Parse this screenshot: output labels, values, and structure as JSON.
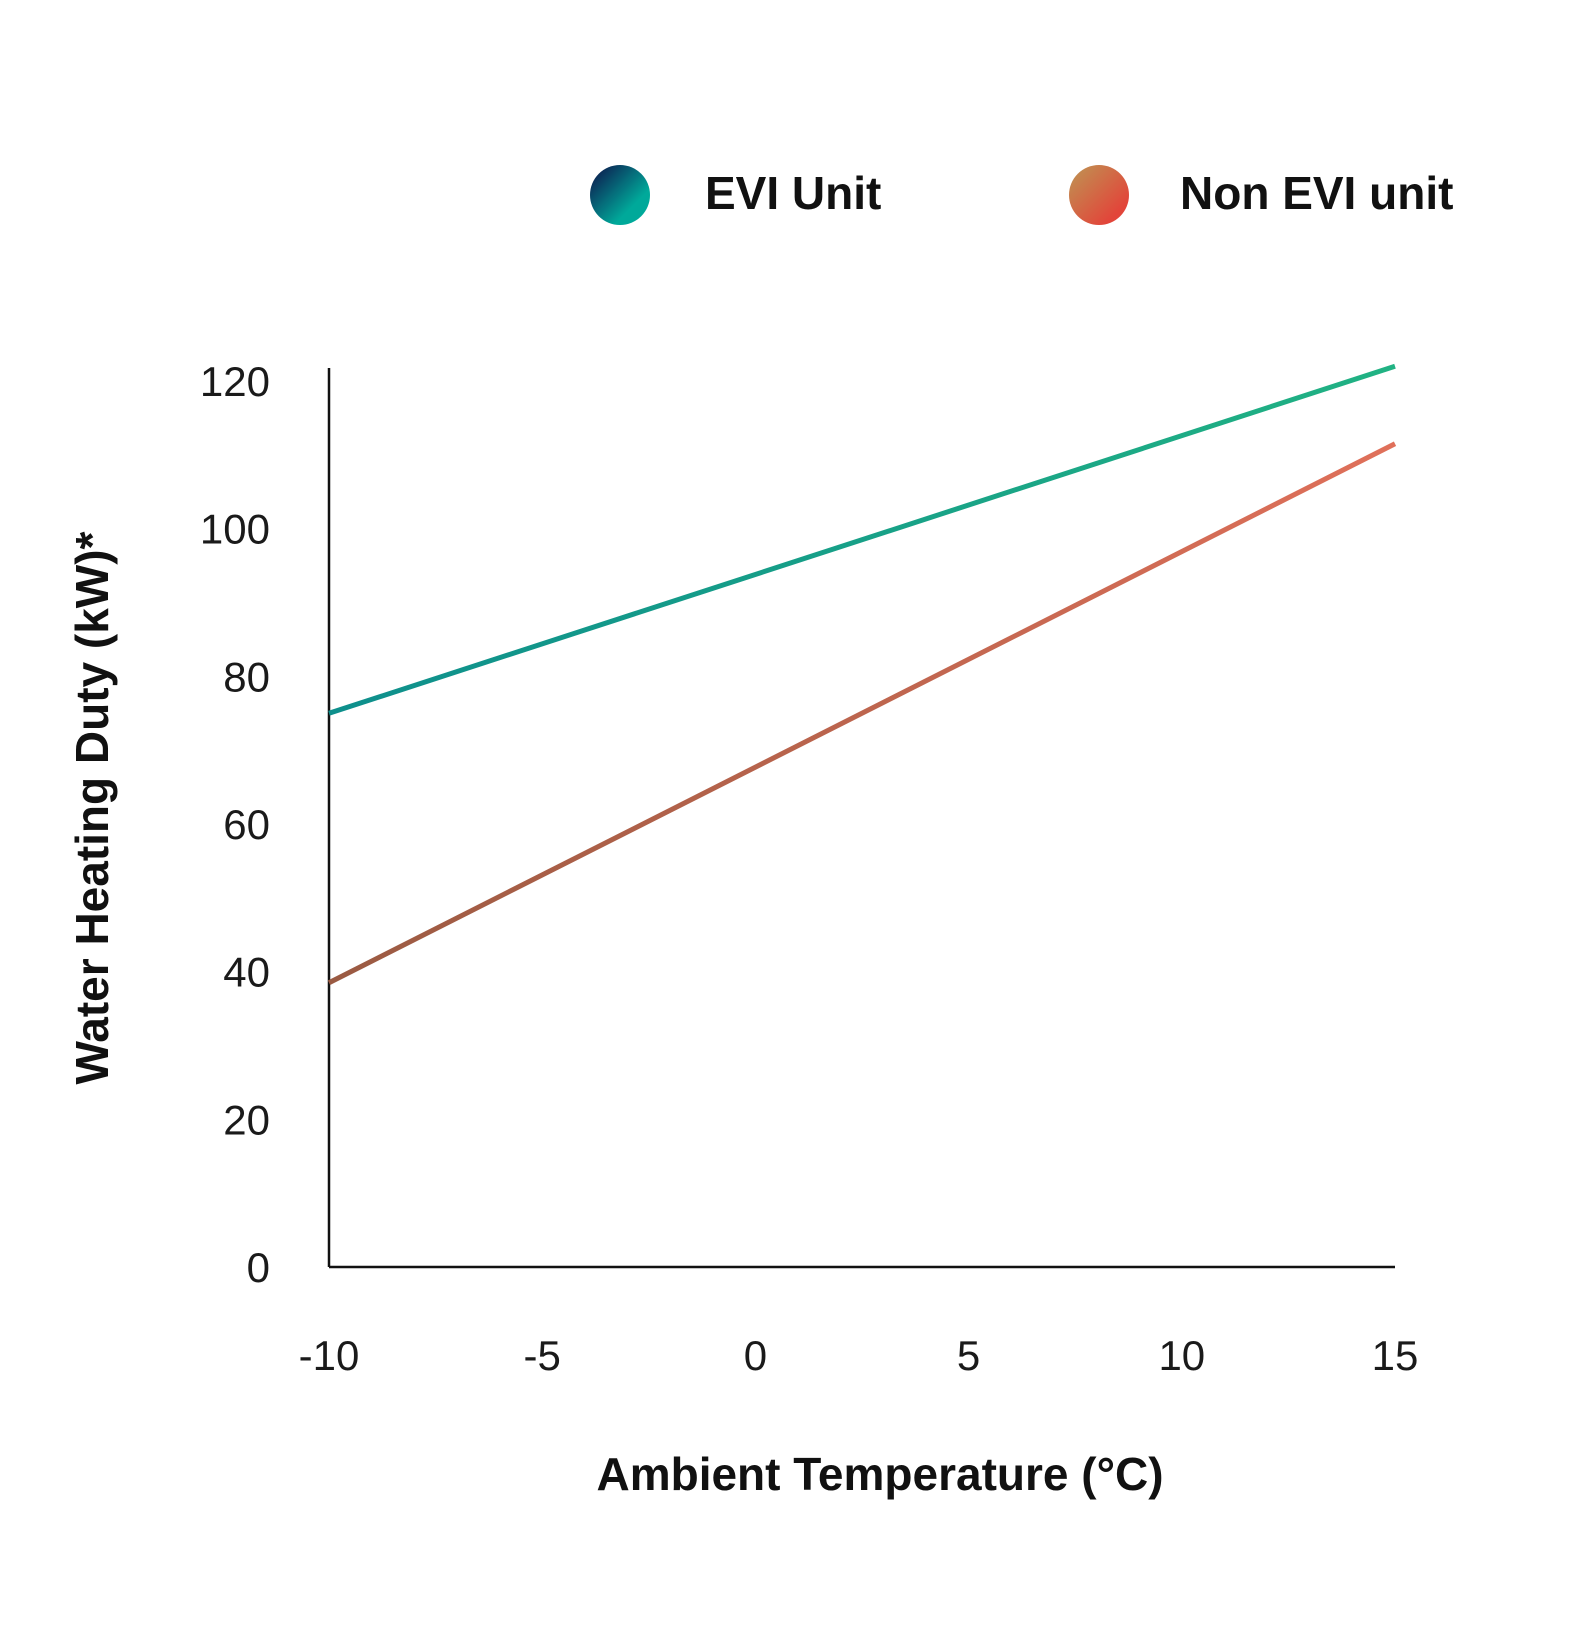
{
  "chart_data": {
    "type": "line",
    "title": "",
    "xlabel": "Ambient Temperature (°C)",
    "ylabel": "Water Heating Duty (kW)*",
    "xlim": [
      -10,
      15
    ],
    "ylim": [
      0,
      120
    ],
    "x_ticks": [
      "-10",
      "-5",
      "0",
      "5",
      "10",
      "15"
    ],
    "y_ticks": [
      "0",
      "20",
      "40",
      "60",
      "80",
      "100",
      "120"
    ],
    "grid": false,
    "legend_position": "top",
    "series": [
      {
        "name": "EVI Unit",
        "x": [
          -10,
          15
        ],
        "y": [
          75,
          122
        ],
        "color_start": "#0E8F8C",
        "color_end": "#21B283",
        "legend_color_start": "#0B2E59",
        "legend_color_end": "#00A99A"
      },
      {
        "name": "Non EVI unit",
        "x": [
          -10,
          15
        ],
        "y": [
          38.5,
          111.5
        ],
        "color_start": "#9A5A42",
        "color_end": "#E0705A",
        "legend_color_start": "#C4874F",
        "legend_color_end": "#E2453A"
      }
    ]
  }
}
